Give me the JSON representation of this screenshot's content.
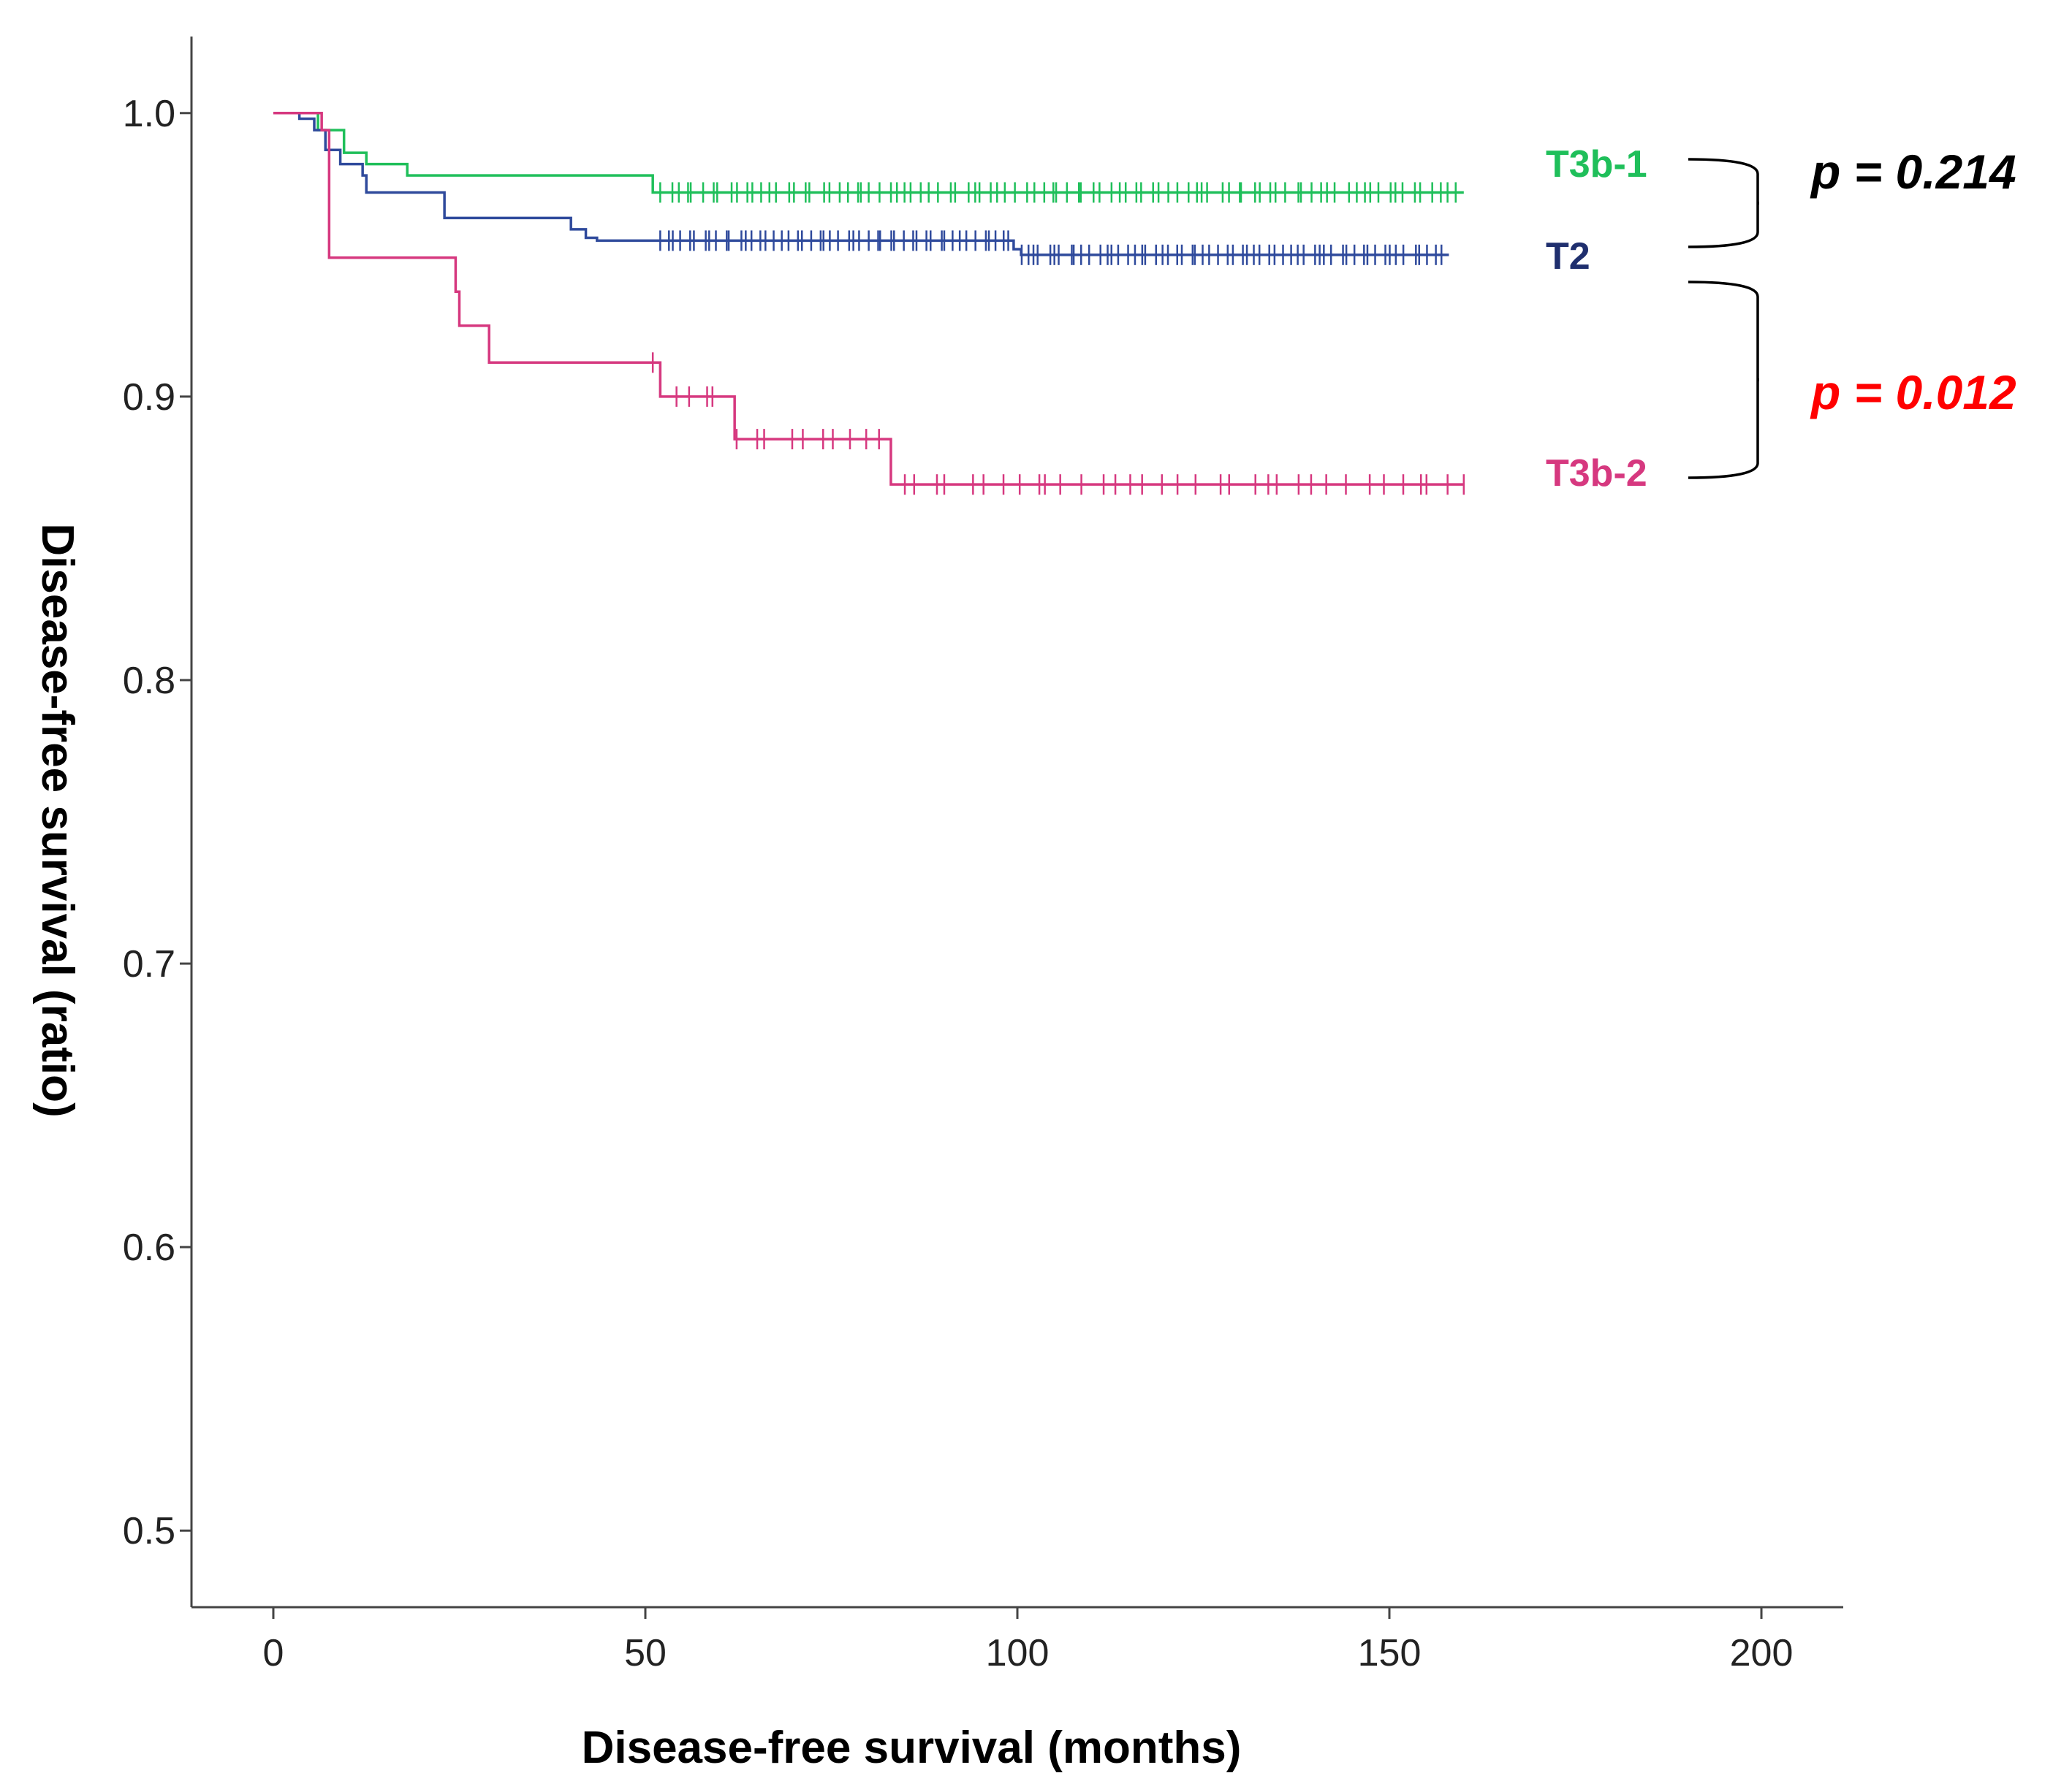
{
  "chart_data": {
    "type": "line",
    "subtype": "kaplan-meier",
    "title": "",
    "xlabel": "Disease-free survival (months)",
    "ylabel": "Disease-free survival (ratio)",
    "xlim": [
      -11,
      211
    ],
    "ylim": [
      0.473,
      1.027
    ],
    "xticks": [
      0,
      50,
      100,
      150,
      200
    ],
    "xtick_labels": [
      "0",
      "50",
      "100",
      "150",
      "200"
    ],
    "yticks": [
      0.5,
      0.6,
      0.7,
      0.8,
      0.9,
      1.0
    ],
    "ytick_labels": [
      "0.5",
      "0.6",
      "0.7",
      "0.8",
      "0.9",
      "1.0"
    ],
    "series": [
      {
        "name": "T3b-1",
        "color": "#1fbf5a",
        "steps": [
          [
            0,
            1.0
          ],
          [
            6,
            0.994
          ],
          [
            9.5,
            0.986
          ],
          [
            12.5,
            0.982
          ],
          [
            18,
            0.978
          ],
          [
            51,
            0.972
          ],
          [
            160,
            0.972
          ]
        ],
        "censored_range": [
          52,
          159
        ],
        "censored_count": 95
      },
      {
        "name": "T2",
        "color": "#2f4a9c",
        "steps": [
          [
            0,
            1.0
          ],
          [
            3.5,
            0.998
          ],
          [
            5.5,
            0.994
          ],
          [
            7,
            0.987
          ],
          [
            9,
            0.982
          ],
          [
            12,
            0.978
          ],
          [
            12.5,
            0.972
          ],
          [
            23,
            0.963
          ],
          [
            40,
            0.959
          ],
          [
            42,
            0.956
          ],
          [
            43.5,
            0.955
          ],
          [
            99.5,
            0.952
          ],
          [
            100.5,
            0.95
          ],
          [
            158,
            0.95
          ]
        ],
        "censored_range": [
          52,
          157
        ],
        "censored_count": 110
      },
      {
        "name": "T3b-2",
        "color": "#d6387f",
        "steps": [
          [
            0,
            1.0
          ],
          [
            6.5,
            0.994
          ],
          [
            7.5,
            0.949
          ],
          [
            24.5,
            0.937
          ],
          [
            25,
            0.925
          ],
          [
            29,
            0.912
          ],
          [
            52,
            0.9
          ],
          [
            62,
            0.885
          ],
          [
            83,
            0.869
          ],
          [
            160,
            0.869
          ]
        ],
        "censored_range": [
          51,
          160
        ],
        "censored_count": 50
      }
    ],
    "comparisons": [
      {
        "label": "p = 0.214",
        "groups": [
          "T3b-1",
          "T2"
        ],
        "color": "#000000"
      },
      {
        "label": "p = 0.012",
        "groups": [
          "T2",
          "T3b-2"
        ],
        "color": "#ff0000"
      }
    ]
  }
}
